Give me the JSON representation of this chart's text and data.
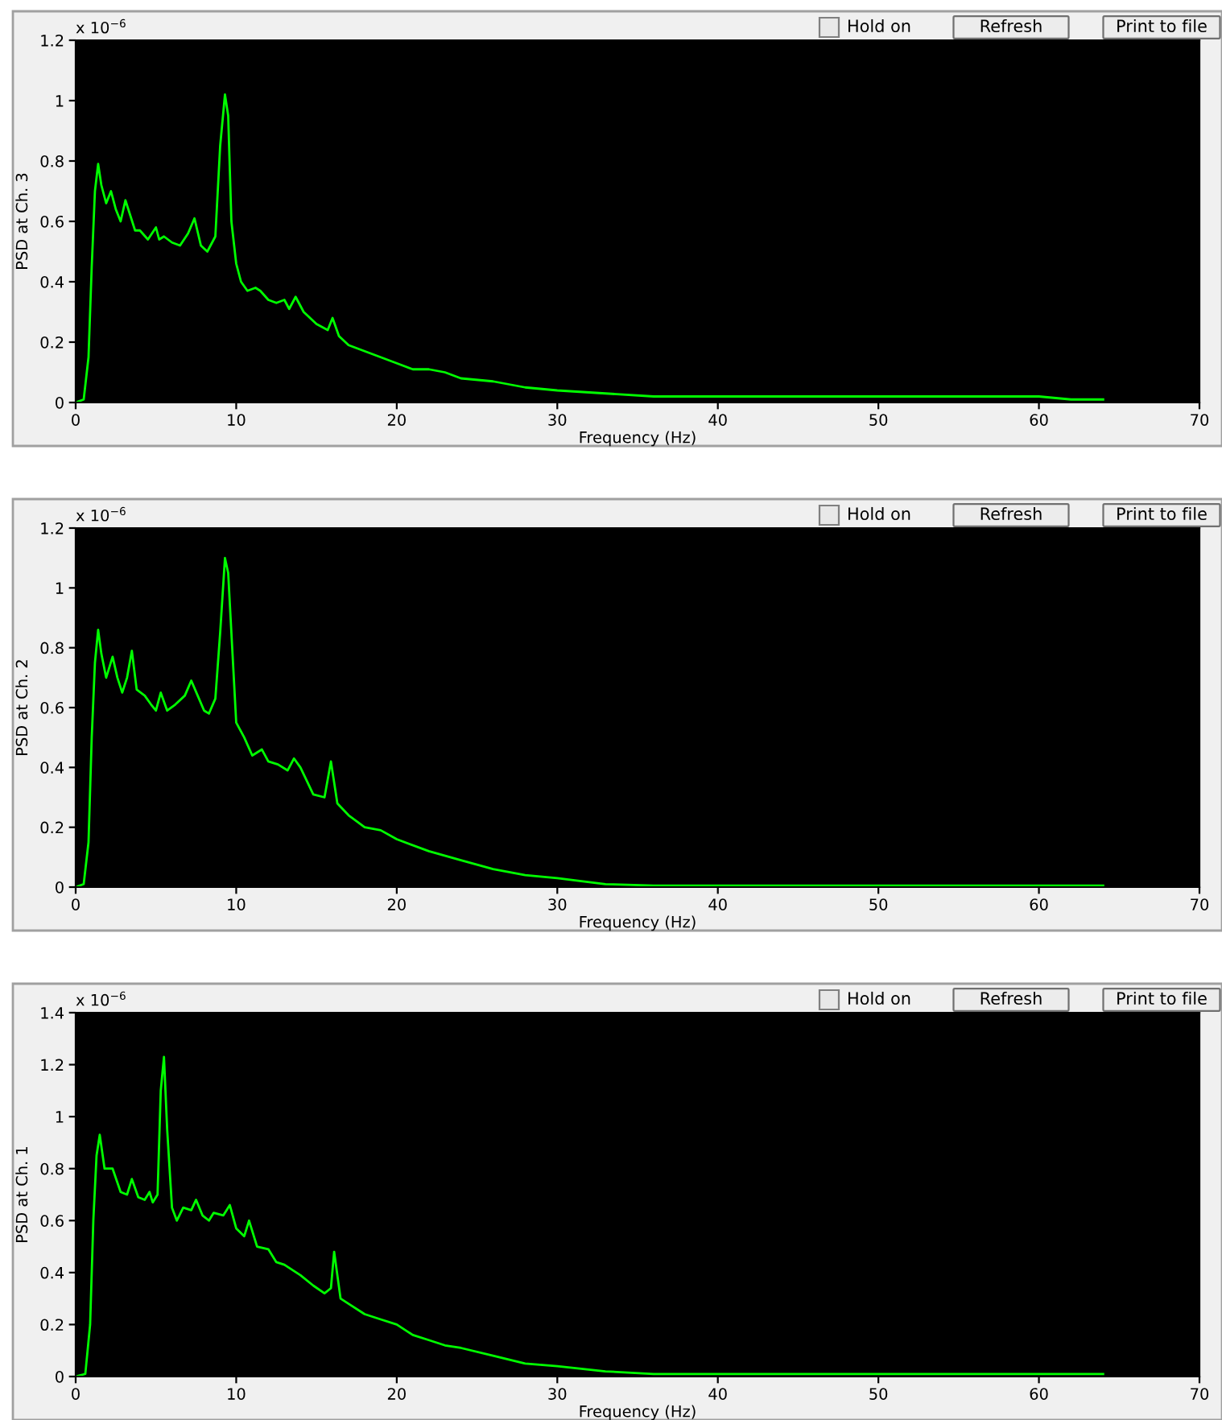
{
  "chart_data": [
    {
      "type": "line",
      "xlabel": "Frequency (Hz)",
      "ylabel": "PSD at Ch. 3",
      "xlim": [
        0,
        70
      ],
      "xticks": [
        0,
        10,
        20,
        30,
        40,
        50,
        60,
        70
      ],
      "ylim": [
        0,
        1.2
      ],
      "yticks": [
        0,
        0.2,
        0.4,
        0.6,
        0.8,
        1,
        1.2
      ],
      "grid": false,
      "legend": false,
      "annotations": [
        "x 10$^{−6}$",
        "Hold on",
        "Refresh",
        "Print to file"
      ],
      "series": [
        {
          "color": "#00ff00",
          "x": [
            0,
            0.5,
            0.8,
            1.0,
            1.2,
            1.4,
            1.6,
            1.9,
            2.2,
            2.5,
            2.8,
            3.1,
            3.4,
            3.7,
            4.0,
            4.5,
            5.0,
            5.2,
            5.5,
            6.0,
            6.5,
            7.0,
            7.4,
            7.8,
            8.2,
            8.7,
            9.0,
            9.3,
            9.5,
            9.7,
            10.0,
            10.3,
            10.7,
            11.2,
            11.5,
            12.0,
            12.5,
            13.0,
            13.3,
            13.7,
            14.2,
            15.0,
            15.7,
            16.0,
            16.4,
            17,
            18,
            19,
            20,
            21,
            22,
            23,
            24,
            26,
            28,
            30,
            33,
            36,
            40,
            45,
            50,
            55,
            60,
            62,
            64
          ],
          "values": [
            0,
            0.01,
            0.15,
            0.45,
            0.7,
            0.79,
            0.72,
            0.66,
            0.7,
            0.64,
            0.6,
            0.67,
            0.62,
            0.57,
            0.57,
            0.54,
            0.58,
            0.54,
            0.55,
            0.53,
            0.52,
            0.56,
            0.61,
            0.52,
            0.5,
            0.55,
            0.85,
            1.02,
            0.95,
            0.6,
            0.46,
            0.4,
            0.37,
            0.38,
            0.37,
            0.34,
            0.33,
            0.34,
            0.31,
            0.35,
            0.3,
            0.26,
            0.24,
            0.28,
            0.22,
            0.19,
            0.17,
            0.15,
            0.13,
            0.11,
            0.11,
            0.1,
            0.08,
            0.07,
            0.05,
            0.04,
            0.03,
            0.02,
            0.02,
            0.02,
            0.02,
            0.02,
            0.02,
            0.01,
            0.01
          ]
        }
      ]
    },
    {
      "type": "line",
      "xlabel": "Frequency (Hz)",
      "ylabel": "PSD at Ch. 2",
      "xlim": [
        0,
        70
      ],
      "xticks": [
        0,
        10,
        20,
        30,
        40,
        50,
        60,
        70
      ],
      "ylim": [
        0,
        1.2
      ],
      "yticks": [
        0,
        0.2,
        0.4,
        0.6,
        0.8,
        1,
        1.2
      ],
      "grid": false,
      "legend": false,
      "annotations": [
        "x 10$^{−6}$",
        "Hold on",
        "Refresh",
        "Print to file"
      ],
      "series": [
        {
          "color": "#00ff00",
          "x": [
            0,
            0.5,
            0.8,
            1.0,
            1.2,
            1.4,
            1.6,
            1.9,
            2.3,
            2.6,
            2.9,
            3.2,
            3.5,
            3.8,
            4.3,
            4.7,
            5.0,
            5.3,
            5.7,
            6.2,
            6.8,
            7.2,
            7.6,
            8.0,
            8.3,
            8.7,
            9.0,
            9.3,
            9.5,
            9.8,
            10.0,
            10.5,
            11.0,
            11.6,
            12.0,
            12.6,
            13.2,
            13.6,
            14.0,
            14.8,
            15.5,
            15.9,
            16.3,
            17,
            18,
            19,
            20,
            22,
            24,
            26,
            28,
            30,
            33,
            36,
            40,
            50,
            60,
            64
          ],
          "values": [
            0,
            0.01,
            0.15,
            0.5,
            0.75,
            0.86,
            0.78,
            0.7,
            0.77,
            0.7,
            0.65,
            0.7,
            0.79,
            0.66,
            0.64,
            0.61,
            0.59,
            0.65,
            0.59,
            0.61,
            0.64,
            0.69,
            0.64,
            0.59,
            0.58,
            0.63,
            0.85,
            1.1,
            1.05,
            0.75,
            0.55,
            0.5,
            0.44,
            0.46,
            0.42,
            0.41,
            0.39,
            0.43,
            0.4,
            0.31,
            0.3,
            0.42,
            0.28,
            0.24,
            0.2,
            0.19,
            0.16,
            0.12,
            0.09,
            0.06,
            0.04,
            0.03,
            0.01,
            0.005,
            0.005,
            0.005,
            0.005,
            0.005
          ]
        }
      ]
    },
    {
      "type": "line",
      "xlabel": "Frequency (Hz)",
      "ylabel": "PSD at Ch. 1",
      "xlim": [
        0,
        70
      ],
      "xticks": [
        0,
        10,
        20,
        30,
        40,
        50,
        60,
        70
      ],
      "ylim": [
        0,
        1.4
      ],
      "yticks": [
        0,
        0.2,
        0.4,
        0.6,
        0.8,
        1,
        1.2,
        1.4
      ],
      "grid": false,
      "legend": false,
      "annotations": [
        "x 10$^{−6}$",
        "Hold on",
        "Refresh",
        "Print to file"
      ],
      "series": [
        {
          "color": "#00ff00",
          "x": [
            0,
            0.6,
            0.9,
            1.1,
            1.3,
            1.5,
            1.8,
            2.3,
            2.8,
            3.2,
            3.5,
            3.9,
            4.3,
            4.6,
            4.8,
            5.1,
            5.3,
            5.5,
            5.7,
            6.0,
            6.3,
            6.7,
            7.2,
            7.5,
            7.9,
            8.3,
            8.6,
            9.2,
            9.6,
            10.0,
            10.5,
            10.8,
            11.3,
            12.0,
            12.5,
            13.0,
            14,
            14.8,
            15.5,
            15.9,
            16.1,
            16.5,
            17,
            18,
            19,
            20,
            21,
            22,
            23,
            24,
            26,
            28,
            30,
            33,
            36,
            40,
            50,
            64
          ],
          "values": [
            0,
            0.01,
            0.2,
            0.6,
            0.85,
            0.93,
            0.8,
            0.8,
            0.71,
            0.7,
            0.76,
            0.69,
            0.68,
            0.71,
            0.67,
            0.7,
            1.1,
            1.23,
            0.95,
            0.65,
            0.6,
            0.65,
            0.64,
            0.68,
            0.62,
            0.6,
            0.63,
            0.62,
            0.66,
            0.57,
            0.54,
            0.6,
            0.5,
            0.49,
            0.44,
            0.43,
            0.39,
            0.35,
            0.32,
            0.34,
            0.48,
            0.3,
            0.28,
            0.24,
            0.22,
            0.2,
            0.16,
            0.14,
            0.12,
            0.11,
            0.08,
            0.05,
            0.04,
            0.02,
            0.01,
            0.01,
            0.01,
            0.01
          ]
        }
      ]
    }
  ]
}
